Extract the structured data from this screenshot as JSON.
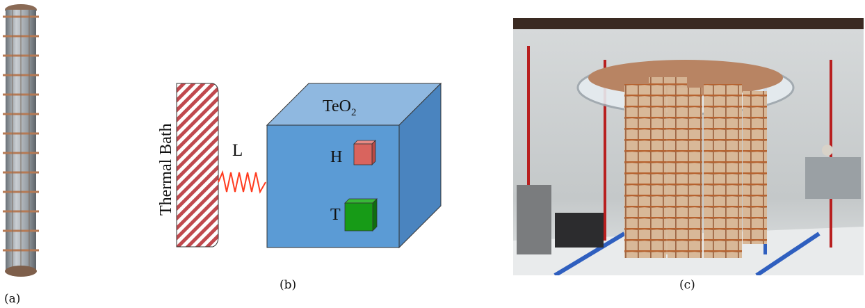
{
  "panels": {
    "a": {
      "caption": "(a)"
    },
    "b": {
      "caption": "(b)",
      "bath_label": "Thermal Bath",
      "link_label": "L",
      "crystal_label": "TeO",
      "crystal_subscript": "2",
      "heater_label": "H",
      "thermistor_label": "T",
      "colors": {
        "crystal": "#5b9bd5",
        "heater": "#d9645e",
        "thermistor": "#179b17",
        "spring": "#ff3b1f",
        "bath_stripe": "#c0494e"
      }
    },
    "c": {
      "caption": "(c)"
    }
  }
}
